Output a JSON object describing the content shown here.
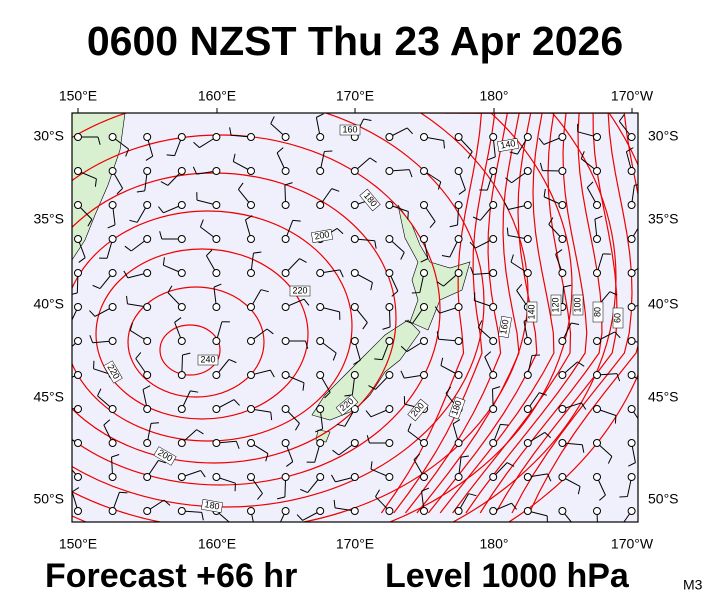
{
  "header": {
    "title": "0600 NZST Thu 23 Apr 2026"
  },
  "map": {
    "longitude_labels": [
      "150°E",
      "160°E",
      "170°E",
      "180°",
      "170°W"
    ],
    "latitude_labels": [
      "30°S",
      "35°S",
      "40°S",
      "45°S",
      "50°S"
    ],
    "contour_labels": [
      "160",
      "140",
      "180",
      "200",
      "220",
      "240",
      "220",
      "200",
      "180",
      "220",
      "200",
      "180",
      "160",
      "140",
      "120",
      "100",
      "80",
      "60"
    ]
  },
  "footer": {
    "forecast": "Forecast +66 hr",
    "level": "Level 1000 hPa",
    "model": "M3"
  }
}
